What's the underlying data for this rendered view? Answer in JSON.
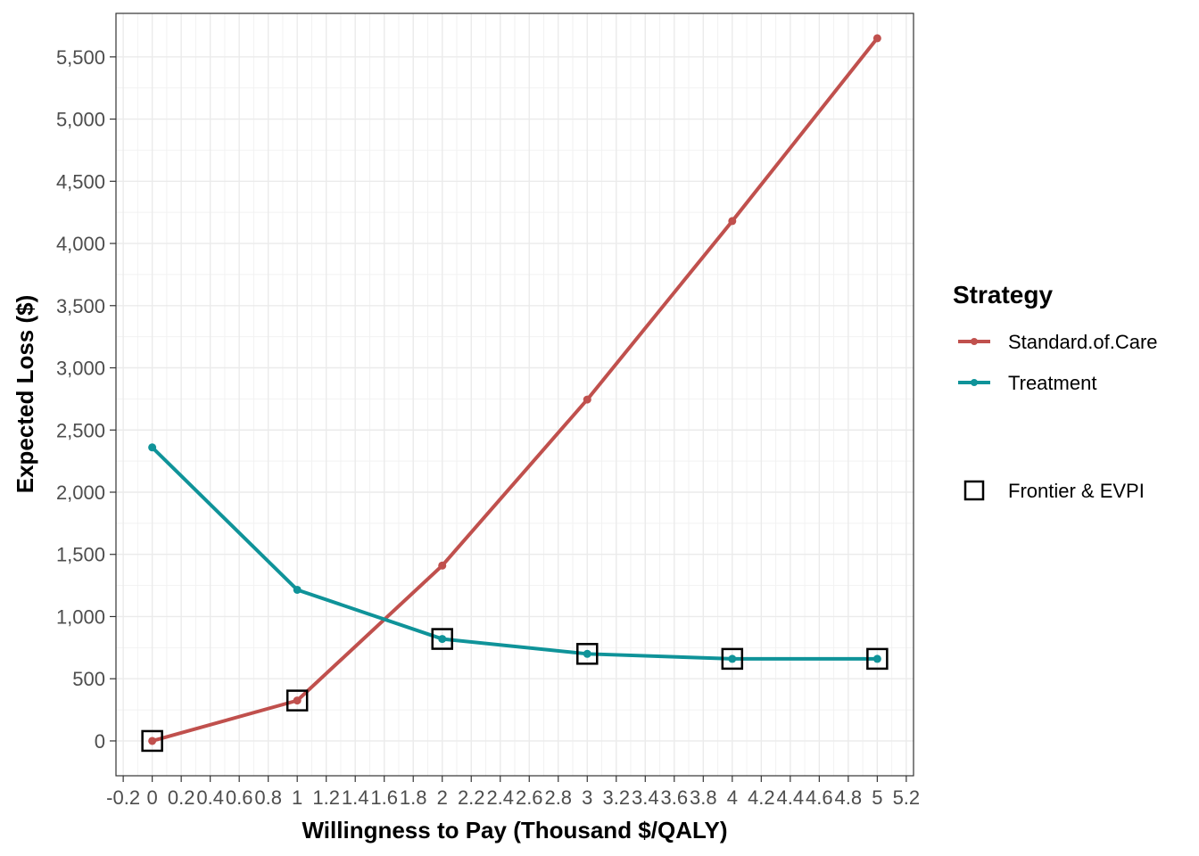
{
  "chart_data": {
    "type": "line",
    "xlabel": "Willingness to Pay (Thousand $/QALY)",
    "ylabel": "Expected Loss ($)",
    "xlim": [
      -0.25,
      5.25
    ],
    "ylim": [
      -280,
      5850
    ],
    "x_ticks": [
      -0.2,
      0,
      0.2,
      0.4,
      0.6,
      0.8,
      1,
      1.2,
      1.4,
      1.6,
      1.8,
      2,
      2.2,
      2.4,
      2.6,
      2.8,
      3,
      3.2,
      3.4,
      3.6,
      3.8,
      4,
      4.2,
      4.4,
      4.6,
      4.8,
      5,
      5.2
    ],
    "x_tick_labels": [
      "-0.2",
      "0",
      "0.2",
      "0.4",
      "0.6",
      "0.8",
      "1",
      "1.2",
      "1.4",
      "1.6",
      "1.8",
      "2",
      "2.2",
      "2.4",
      "2.6",
      "2.8",
      "3",
      "3.2",
      "3.4",
      "3.6",
      "3.8",
      "4",
      "4.2",
      "4.4",
      "4.6",
      "4.8",
      "5",
      "5.2"
    ],
    "y_ticks": [
      0,
      500,
      1000,
      1500,
      2000,
      2500,
      3000,
      3500,
      4000,
      4500,
      5000,
      5500
    ],
    "y_tick_labels": [
      "0",
      "500",
      "1,000",
      "1,500",
      "2,000",
      "2,500",
      "3,000",
      "3,500",
      "4,000",
      "4,500",
      "5,000",
      "5,500"
    ],
    "grid": true,
    "x": [
      0,
      1,
      2,
      3,
      4,
      5
    ],
    "series": [
      {
        "name": "Standard.of.Care",
        "color": "#c0504d",
        "values": [
          0,
          325,
          1410,
          2745,
          4180,
          5650
        ]
      },
      {
        "name": "Treatment",
        "color": "#0f9399",
        "values": [
          2360,
          1215,
          820,
          700,
          660,
          660
        ]
      }
    ],
    "frontier": {
      "name": "Frontier & EVPI",
      "x": [
        0,
        1,
        2,
        3,
        4,
        5
      ],
      "values": [
        0,
        325,
        820,
        700,
        660,
        660
      ]
    },
    "legend": {
      "title": "Strategy",
      "placement": "right"
    }
  }
}
